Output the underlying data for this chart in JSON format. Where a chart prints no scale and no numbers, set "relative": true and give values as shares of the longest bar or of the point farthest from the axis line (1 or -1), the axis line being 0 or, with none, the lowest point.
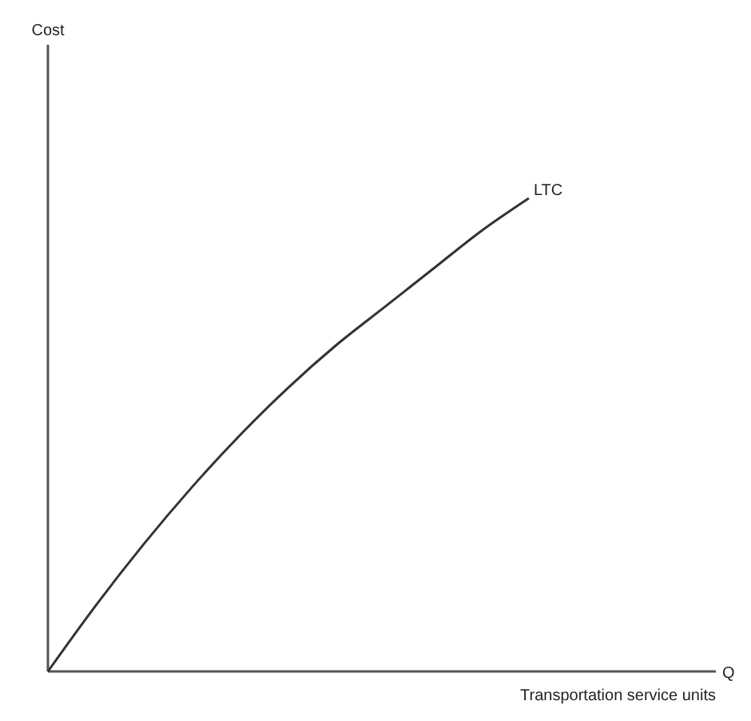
{
  "chart_data": {
    "type": "line",
    "relative": true,
    "xlabel": "Transportation service units",
    "annotations": [
      "Q",
      "Cost"
    ],
    "categories": [
      null,
      null,
      null,
      null,
      null,
      null,
      null,
      null,
      null,
      null,
      null
    ],
    "series": [
      {
        "name": "LTC",
        "color": "#333333",
        "values": [
          0,
          0.14,
          0.27,
          0.39,
          0.5,
          0.6,
          0.69,
          0.77,
          0.85,
          0.93,
          1
        ]
      }
    ],
    "grid": false,
    "legend": false,
    "marker": "none",
    "line_style": "solid"
  }
}
